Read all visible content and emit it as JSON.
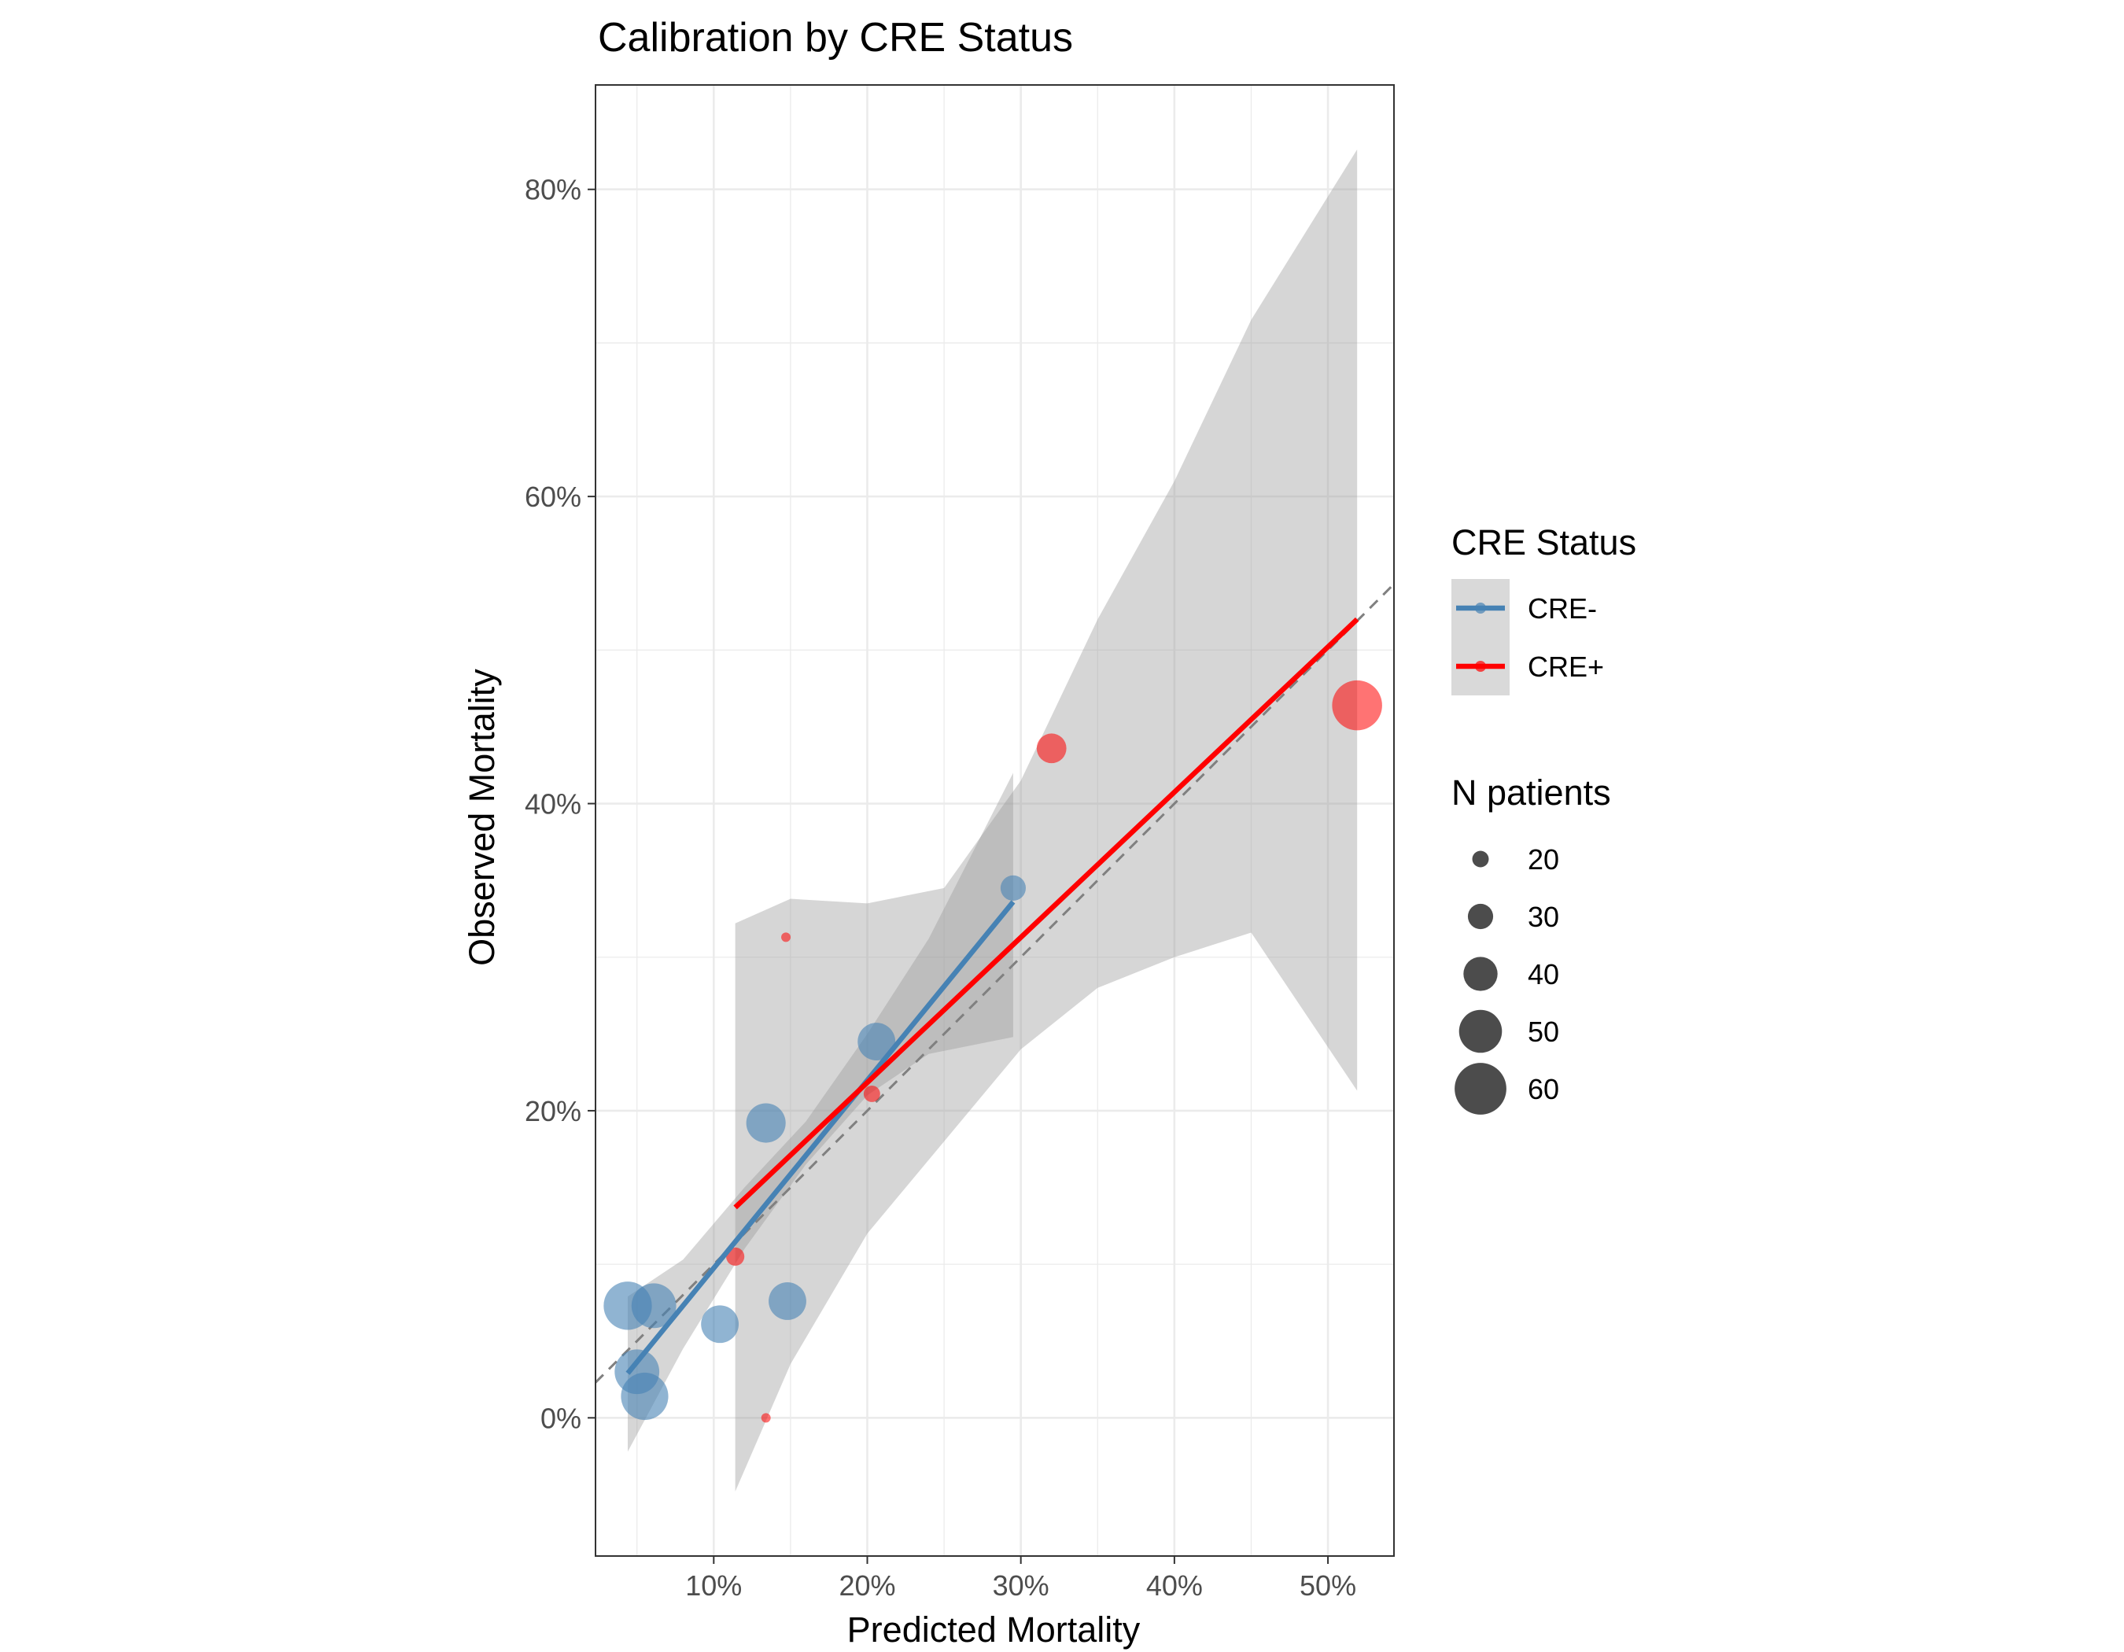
{
  "chart_data": {
    "type": "scatter",
    "title": "Calibration by CRE Status",
    "xlabel": "Predicted Mortality",
    "ylabel": "Observed Mortality",
    "xlim": [
      0.023,
      0.543
    ],
    "ylim": [
      -0.09,
      0.868
    ],
    "x_ticks": [
      0.1,
      0.2,
      0.3,
      0.4,
      0.5
    ],
    "x_tick_labels": [
      "10%",
      "20%",
      "30%",
      "40%",
      "50%"
    ],
    "y_ticks": [
      0.0,
      0.2,
      0.4,
      0.6,
      0.8
    ],
    "y_tick_labels": [
      "0%",
      "20%",
      "40%",
      "60%",
      "80%"
    ],
    "grid": true,
    "reference_line": {
      "style": "dashed",
      "slope": 1,
      "intercept": 0
    },
    "series": [
      {
        "name": "CRE-",
        "color": "#4682B4",
        "points": [
          {
            "x": 0.044,
            "y": 0.073,
            "n": 56
          },
          {
            "x": 0.061,
            "y": 0.073,
            "n": 52
          },
          {
            "x": 0.05,
            "y": 0.03,
            "n": 52
          },
          {
            "x": 0.055,
            "y": 0.014,
            "n": 55
          },
          {
            "x": 0.104,
            "y": 0.061,
            "n": 44
          },
          {
            "x": 0.148,
            "y": 0.076,
            "n": 44
          },
          {
            "x": 0.134,
            "y": 0.192,
            "n": 46
          },
          {
            "x": 0.206,
            "y": 0.245,
            "n": 44
          },
          {
            "x": 0.295,
            "y": 0.345,
            "n": 30
          }
        ],
        "fit": {
          "x_start": 0.044,
          "x_end": 0.295,
          "y_start": 0.029,
          "y_end": 0.336
        },
        "ci_band": [
          {
            "x": 0.044,
            "lo": -0.022,
            "hi": 0.079
          },
          {
            "x": 0.08,
            "lo": 0.045,
            "hi": 0.103
          },
          {
            "x": 0.12,
            "lo": 0.11,
            "hi": 0.15
          },
          {
            "x": 0.16,
            "lo": 0.165,
            "hi": 0.193
          },
          {
            "x": 0.2,
            "lo": 0.21,
            "hi": 0.25
          },
          {
            "x": 0.24,
            "lo": 0.237,
            "hi": 0.312
          },
          {
            "x": 0.295,
            "lo": 0.248,
            "hi": 0.42
          }
        ]
      },
      {
        "name": "CRE+",
        "color": "#FF0000",
        "points": [
          {
            "x": 0.114,
            "y": 0.105,
            "n": 22
          },
          {
            "x": 0.134,
            "y": 0.0,
            "n": 12
          },
          {
            "x": 0.147,
            "y": 0.313,
            "n": 12
          },
          {
            "x": 0.203,
            "y": 0.211,
            "n": 20
          },
          {
            "x": 0.32,
            "y": 0.436,
            "n": 35
          },
          {
            "x": 0.519,
            "y": 0.464,
            "n": 58
          }
        ],
        "fit": {
          "x_start": 0.114,
          "x_end": 0.519,
          "y_start": 0.137,
          "y_end": 0.52
        },
        "ci_band": [
          {
            "x": 0.114,
            "lo": -0.048,
            "hi": 0.322
          },
          {
            "x": 0.15,
            "lo": 0.035,
            "hi": 0.338
          },
          {
            "x": 0.2,
            "lo": 0.12,
            "hi": 0.335
          },
          {
            "x": 0.25,
            "lo": 0.18,
            "hi": 0.345
          },
          {
            "x": 0.3,
            "lo": 0.24,
            "hi": 0.415
          },
          {
            "x": 0.35,
            "lo": 0.28,
            "hi": 0.52
          },
          {
            "x": 0.4,
            "lo": 0.3,
            "hi": 0.61
          },
          {
            "x": 0.45,
            "lo": 0.316,
            "hi": 0.715
          },
          {
            "x": 0.519,
            "lo": 0.213,
            "hi": 0.826
          }
        ]
      }
    ],
    "legend": {
      "placement": "right",
      "color_title": "CRE Status",
      "color_entries": [
        "CRE-",
        "CRE+"
      ],
      "size_title": "N patients",
      "size_entries": [
        "20",
        "30",
        "40",
        "50",
        "60"
      ]
    }
  }
}
